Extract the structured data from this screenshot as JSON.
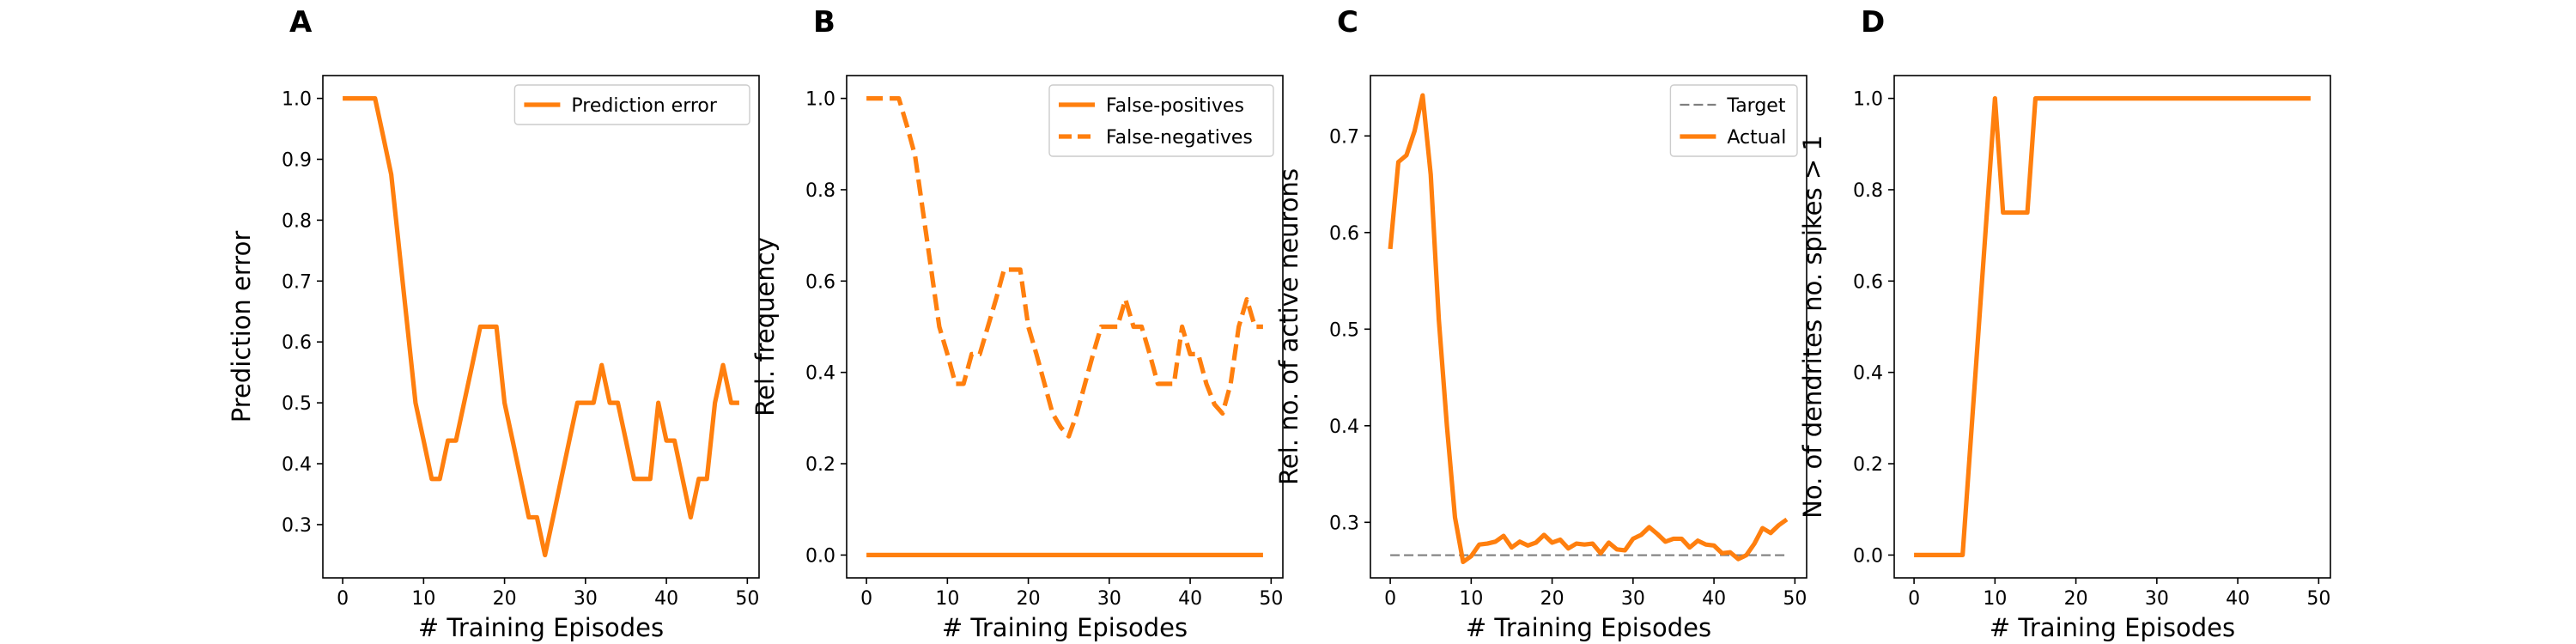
{
  "chart_data": [
    {
      "panel": "A",
      "type": "line",
      "xlabel": "# Training Episodes",
      "ylabel": "Prediction error",
      "xlim": [
        -2.45,
        51.45
      ],
      "ylim": [
        0.2125,
        1.0375
      ],
      "xticks": [
        0,
        10,
        20,
        30,
        40,
        50
      ],
      "yticks": [
        0.3,
        0.4,
        0.5,
        0.6,
        0.7,
        0.8,
        0.9,
        1.0
      ],
      "ytick_decimals": 1,
      "legend_position": "top-right",
      "series": [
        {
          "name": "Prediction error",
          "color": "#ff7f0e",
          "style": "solid",
          "x": [
            0,
            1,
            2,
            3,
            4,
            5,
            6,
            7,
            8,
            9,
            10,
            11,
            12,
            13,
            14,
            15,
            16,
            17,
            18,
            19,
            20,
            21,
            22,
            23,
            24,
            25,
            26,
            27,
            28,
            29,
            30,
            31,
            32,
            33,
            34,
            35,
            36,
            37,
            38,
            39,
            40,
            41,
            42,
            43,
            44,
            45,
            46,
            47,
            48,
            49
          ],
          "y": [
            1.0,
            1.0,
            1.0,
            1.0,
            1.0,
            0.938,
            0.875,
            0.75,
            0.625,
            0.5,
            0.438,
            0.375,
            0.375,
            0.438,
            0.438,
            0.5,
            0.562,
            0.625,
            0.625,
            0.625,
            0.5,
            0.438,
            0.375,
            0.312,
            0.312,
            0.25,
            0.312,
            0.375,
            0.438,
            0.5,
            0.5,
            0.5,
            0.562,
            0.5,
            0.5,
            0.438,
            0.375,
            0.375,
            0.375,
            0.5,
            0.438,
            0.438,
            0.375,
            0.312,
            0.375,
            0.375,
            0.5,
            0.562,
            0.5,
            0.5
          ]
        }
      ]
    },
    {
      "panel": "B",
      "type": "line",
      "xlabel": "# Training Episodes",
      "ylabel": "Rel. frequency",
      "xlim": [
        -2.45,
        51.45
      ],
      "ylim": [
        -0.05,
        1.05
      ],
      "xticks": [
        0,
        10,
        20,
        30,
        40,
        50
      ],
      "yticks": [
        0.0,
        0.2,
        0.4,
        0.6,
        0.8,
        1.0
      ],
      "ytick_decimals": 1,
      "legend_position": "top-right",
      "series": [
        {
          "name": "False-positives",
          "color": "#ff7f0e",
          "style": "solid",
          "x": [
            0,
            1,
            2,
            3,
            4,
            5,
            6,
            7,
            8,
            9,
            10,
            11,
            12,
            13,
            14,
            15,
            16,
            17,
            18,
            19,
            20,
            21,
            22,
            23,
            24,
            25,
            26,
            27,
            28,
            29,
            30,
            31,
            32,
            33,
            34,
            35,
            36,
            37,
            38,
            39,
            40,
            41,
            42,
            43,
            44,
            45,
            46,
            47,
            48,
            49
          ],
          "y": [
            0,
            0,
            0,
            0,
            0,
            0,
            0,
            0,
            0,
            0,
            0,
            0,
            0,
            0,
            0,
            0,
            0,
            0,
            0,
            0,
            0,
            0,
            0,
            0,
            0,
            0,
            0,
            0,
            0,
            0,
            0,
            0,
            0,
            0,
            0,
            0,
            0,
            0,
            0,
            0,
            0,
            0,
            0,
            0,
            0,
            0,
            0,
            0,
            0,
            0
          ]
        },
        {
          "name": "False-negatives",
          "color": "#ff7f0e",
          "style": "dashed",
          "x": [
            0,
            1,
            2,
            3,
            4,
            5,
            6,
            7,
            8,
            9,
            10,
            11,
            12,
            13,
            14,
            15,
            16,
            17,
            18,
            19,
            20,
            21,
            22,
            23,
            24,
            25,
            26,
            27,
            28,
            29,
            30,
            31,
            32,
            33,
            34,
            35,
            36,
            37,
            38,
            39,
            40,
            41,
            42,
            43,
            44,
            45,
            46,
            47,
            48,
            49
          ],
          "y": [
            1.0,
            1.0,
            1.0,
            1.0,
            1.0,
            0.94,
            0.875,
            0.75,
            0.625,
            0.5,
            0.44,
            0.375,
            0.375,
            0.44,
            0.44,
            0.5,
            0.56,
            0.625,
            0.625,
            0.625,
            0.5,
            0.44,
            0.375,
            0.31,
            0.28,
            0.26,
            0.31,
            0.375,
            0.44,
            0.5,
            0.5,
            0.5,
            0.56,
            0.5,
            0.5,
            0.44,
            0.375,
            0.375,
            0.375,
            0.5,
            0.44,
            0.44,
            0.375,
            0.33,
            0.31,
            0.375,
            0.5,
            0.56,
            0.5,
            0.5
          ]
        }
      ]
    },
    {
      "panel": "C",
      "type": "line",
      "xlabel": "# Training Episodes",
      "ylabel": "Rel. no. of active neurons",
      "xlim": [
        -2.45,
        51.45
      ],
      "ylim": [
        0.2425,
        0.7625
      ],
      "xticks": [
        0,
        10,
        20,
        30,
        40,
        50
      ],
      "yticks": [
        0.3,
        0.4,
        0.5,
        0.6,
        0.7
      ],
      "ytick_decimals": 1,
      "legend_position": "top-right",
      "series": [
        {
          "name": "Target",
          "color": "#7f7f7f",
          "style": "dashed",
          "x": [
            0,
            49
          ],
          "y": [
            0.266,
            0.266
          ]
        },
        {
          "name": "Actual",
          "color": "#ff7f0e",
          "style": "solid",
          "x": [
            0,
            1,
            2,
            3,
            4,
            5,
            6,
            7,
            8,
            9,
            10,
            11,
            12,
            13,
            14,
            15,
            16,
            17,
            18,
            19,
            20,
            21,
            22,
            23,
            24,
            25,
            26,
            27,
            28,
            29,
            30,
            31,
            32,
            33,
            34,
            35,
            36,
            37,
            38,
            39,
            40,
            41,
            42,
            43,
            44,
            45,
            46,
            47,
            48,
            49
          ],
          "y": [
            0.583,
            0.673,
            0.68,
            0.705,
            0.742,
            0.66,
            0.51,
            0.4,
            0.305,
            0.259,
            0.265,
            0.277,
            0.278,
            0.28,
            0.286,
            0.274,
            0.28,
            0.276,
            0.279,
            0.287,
            0.279,
            0.282,
            0.273,
            0.278,
            0.277,
            0.278,
            0.268,
            0.279,
            0.272,
            0.271,
            0.283,
            0.287,
            0.295,
            0.288,
            0.28,
            0.283,
            0.283,
            0.274,
            0.281,
            0.277,
            0.276,
            0.268,
            0.269,
            0.262,
            0.266,
            0.278,
            0.294,
            0.289,
            0.297,
            0.303
          ]
        }
      ]
    },
    {
      "panel": "D",
      "type": "line",
      "xlabel": "# Training Episodes",
      "ylabel": "No. of dendrites no. spikes > 1",
      "xlim": [
        -2.45,
        51.45
      ],
      "ylim": [
        -0.05,
        1.05
      ],
      "xticks": [
        0,
        10,
        20,
        30,
        40,
        50
      ],
      "yticks": [
        0.0,
        0.2,
        0.4,
        0.6,
        0.8,
        1.0
      ],
      "ytick_decimals": 1,
      "legend_position": "none",
      "series": [
        {
          "name": "",
          "color": "#ff7f0e",
          "style": "solid",
          "x": [
            0,
            1,
            2,
            3,
            4,
            5,
            6,
            7,
            8,
            9,
            10,
            11,
            12,
            13,
            14,
            15,
            16,
            17,
            18,
            19,
            20,
            21,
            22,
            23,
            24,
            25,
            26,
            27,
            28,
            29,
            30,
            31,
            32,
            33,
            34,
            35,
            36,
            37,
            38,
            39,
            40,
            41,
            42,
            43,
            44,
            45,
            46,
            47,
            48,
            49
          ],
          "y": [
            0,
            0,
            0,
            0,
            0,
            0,
            0,
            0.25,
            0.5,
            0.75,
            1.0,
            0.75,
            0.75,
            0.75,
            0.75,
            1.0,
            1.0,
            1.0,
            1.0,
            1.0,
            1.0,
            1.0,
            1.0,
            1.0,
            1.0,
            1.0,
            1.0,
            1.0,
            1.0,
            1.0,
            1.0,
            1.0,
            1.0,
            1.0,
            1.0,
            1.0,
            1.0,
            1.0,
            1.0,
            1.0,
            1.0,
            1.0,
            1.0,
            1.0,
            1.0,
            1.0,
            1.0,
            1.0,
            1.0,
            1.0
          ]
        }
      ]
    }
  ]
}
